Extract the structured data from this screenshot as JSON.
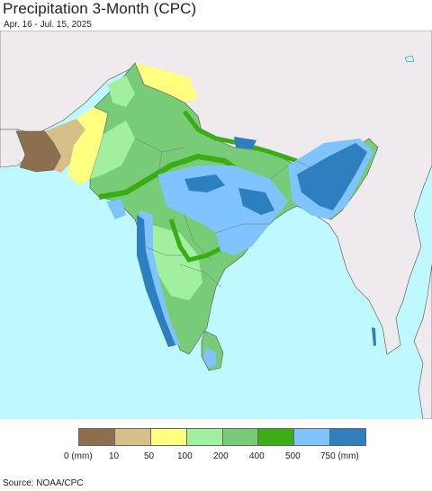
{
  "title": "Precipitation 3-Month (CPC)",
  "subtitle": "Apr. 16 - Jul. 15, 2025",
  "source": "Source: NOAA/CPC",
  "legend": {
    "labels": [
      "0 (mm)",
      "10",
      "50",
      "100",
      "200",
      "400",
      "500",
      "750 (mm)"
    ],
    "colors": [
      "#8b6f4e",
      "#d6c08a",
      "#ffff80",
      "#a0f0a0",
      "#78cc78",
      "#3aad14",
      "#80c4ff",
      "#2d7fc0"
    ]
  },
  "colors": {
    "ocean": "#c0f8ff",
    "land_outside": "#eeeaee",
    "border": "#555555"
  }
}
